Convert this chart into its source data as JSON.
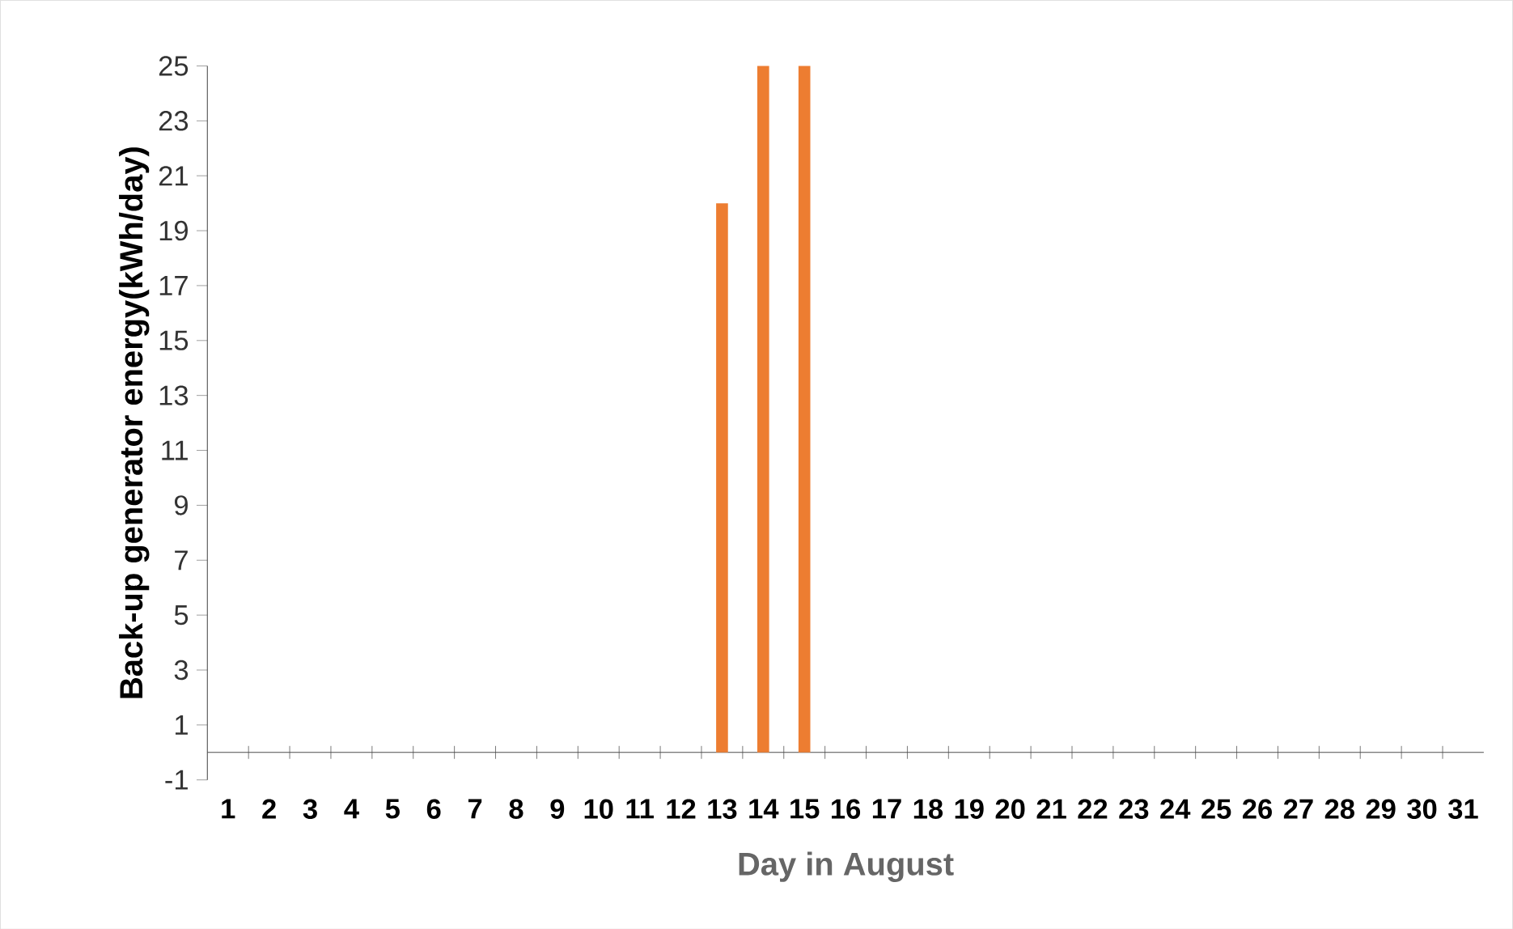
{
  "chart_data": {
    "type": "bar",
    "xlabel": "Day  in August",
    "ylabel": "Back-up generator energy(kWh/day)",
    "categories": [
      "1",
      "2",
      "3",
      "4",
      "5",
      "6",
      "7",
      "8",
      "9",
      "10",
      "11",
      "12",
      "13",
      "14",
      "15",
      "16",
      "17",
      "18",
      "19",
      "20",
      "21",
      "22",
      "23",
      "24",
      "25",
      "26",
      "27",
      "28",
      "29",
      "30",
      "31"
    ],
    "values": [
      0,
      0,
      0,
      0,
      0,
      0,
      0,
      0,
      0,
      0,
      0,
      0,
      20,
      25,
      25,
      0,
      0,
      0,
      0,
      0,
      0,
      0,
      0,
      0,
      0,
      0,
      0,
      0,
      0,
      0,
      0
    ],
    "color": "#ed7d31",
    "ylim": [
      -1,
      25
    ],
    "yticks": [
      -1,
      1,
      3,
      5,
      7,
      9,
      11,
      13,
      15,
      17,
      19,
      21,
      23,
      25
    ]
  }
}
